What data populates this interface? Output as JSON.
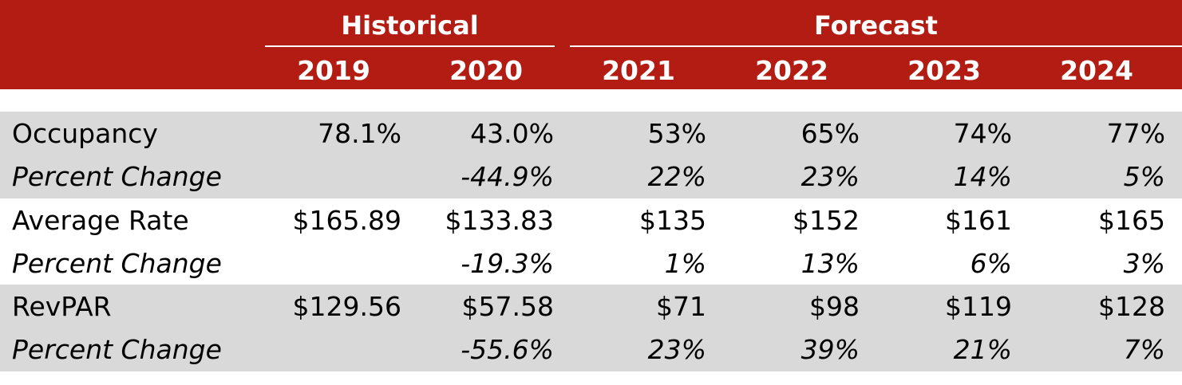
{
  "colors": {
    "header_bg": "#b21c13",
    "band_bg": "#d9d9d9",
    "header_text": "#ffffff"
  },
  "header": {
    "groups": [
      {
        "label": "Historical",
        "years": [
          "2019",
          "2020"
        ]
      },
      {
        "label": "Forecast",
        "years": [
          "2021",
          "2022",
          "2023",
          "2024"
        ]
      }
    ]
  },
  "chart_data": {
    "type": "table",
    "columns": [
      "2019",
      "2020",
      "2021",
      "2022",
      "2023",
      "2024"
    ],
    "rows": [
      {
        "metric": "Occupancy",
        "values": [
          "78.1%",
          "43.0%",
          "53%",
          "65%",
          "74%",
          "77%"
        ],
        "change_label": "Percent Change",
        "change": [
          "",
          "-44.9%",
          "22%",
          "23%",
          "14%",
          "5%"
        ],
        "shaded": true
      },
      {
        "metric": "Average Rate",
        "values": [
          "$165.89",
          "$133.83",
          "$135",
          "$152",
          "$161",
          "$165"
        ],
        "change_label": "Percent Change",
        "change": [
          "",
          "-19.3%",
          "1%",
          "13%",
          "6%",
          "3%"
        ],
        "shaded": false
      },
      {
        "metric": "RevPAR",
        "values": [
          "$129.56",
          "$57.58",
          "$71",
          "$98",
          "$119",
          "$128"
        ],
        "change_label": "Percent Change",
        "change": [
          "",
          "-55.6%",
          "23%",
          "39%",
          "21%",
          "7%"
        ],
        "shaded": true
      }
    ]
  }
}
